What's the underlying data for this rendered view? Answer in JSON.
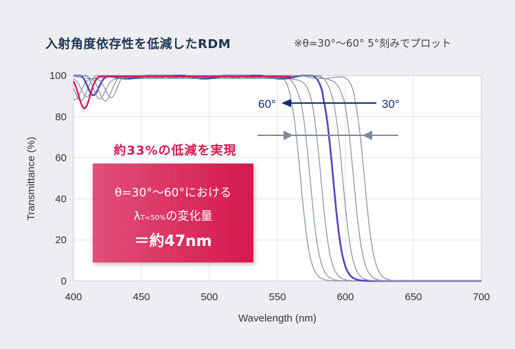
{
  "title": "入射角度依存性を低減したRDM",
  "note": "※θ=30°〜60° 5°刻みでプロット",
  "annotations": {
    "angle_start": "60°",
    "angle_end": "30°",
    "callout_title": "約33%の低減を実現",
    "callout_line1": "θ=30°〜60°における",
    "callout_lambda": "λ",
    "callout_lambda_sub": "T=50%",
    "callout_line2_suffix": "の変化量",
    "callout_line3": "＝約47nm"
  },
  "colors": {
    "gray_curves": "#8a94a3",
    "highlight_curve": "#5a3fbf",
    "red_curve": "#d8194f",
    "arrow_blue": "#0e2a7a",
    "range_arrow": "#7c8a9c",
    "callout_bg": "#d5184e"
  },
  "chart_data": {
    "type": "line",
    "title": "",
    "xlabel": "Wavelength (nm)",
    "ylabel": "Transmittance (%)",
    "xlim": [
      400,
      700
    ],
    "ylim": [
      0,
      100
    ],
    "xticks": [
      400,
      450,
      500,
      550,
      600,
      650,
      700
    ],
    "yticks": [
      0,
      20,
      40,
      60,
      80,
      100
    ],
    "grid": true,
    "series": [
      {
        "angle_deg": 60,
        "lambda_t50_nm": 567,
        "color": "gray"
      },
      {
        "angle_deg": 55,
        "lambda_t50_nm": 574,
        "color": "gray"
      },
      {
        "angle_deg": 50,
        "lambda_t50_nm": 582,
        "color": "gray"
      },
      {
        "angle_deg": 45,
        "lambda_t50_nm": 591,
        "color": "highlight"
      },
      {
        "angle_deg": 40,
        "lambda_t50_nm": 598,
        "color": "gray"
      },
      {
        "angle_deg": 35,
        "lambda_t50_nm": 606,
        "color": "gray"
      },
      {
        "angle_deg": 30,
        "lambda_t50_nm": 614,
        "color": "gray"
      }
    ],
    "transition_width_nm": 3.5,
    "short_wave_dip": {
      "red_center_nm": 408,
      "red_min_pct": 84
    },
    "lambda_shift_nm": 47,
    "reduction_pct": 33
  }
}
